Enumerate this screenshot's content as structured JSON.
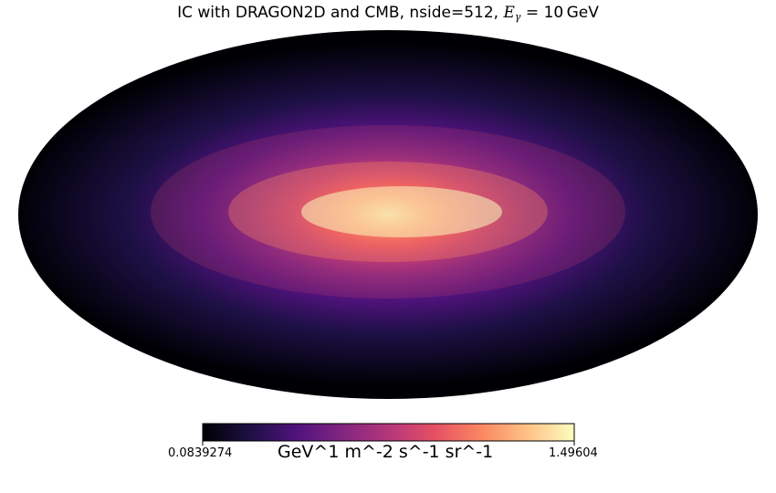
{
  "chart_data": {
    "type": "heatmap",
    "projection": "mollweide",
    "title_prefix": "IC with DRAGON2D and CMB, nside=512, ",
    "title_math_symbol": "E",
    "title_math_subscript": "γ",
    "title_math_equals": " = ",
    "title_math_value": "10",
    "title_math_unit": "GeV",
    "colormap": "magma",
    "colorbar": {
      "min_label": "0.0839274",
      "max_label": "1.49604",
      "unit_label": "GeV^1 m^-2 s^-1 sr^-1",
      "min": 0.0839274,
      "max": 1.49604,
      "orientation": "horizontal",
      "placement": "bottom"
    },
    "peak_location": "galactic-center",
    "colors": {
      "cmap_stops": [
        "#000004",
        "#1c1044",
        "#4f127b",
        "#812581",
        "#b5367a",
        "#e55064",
        "#fb8761",
        "#fec287",
        "#fcfdbf"
      ]
    }
  }
}
